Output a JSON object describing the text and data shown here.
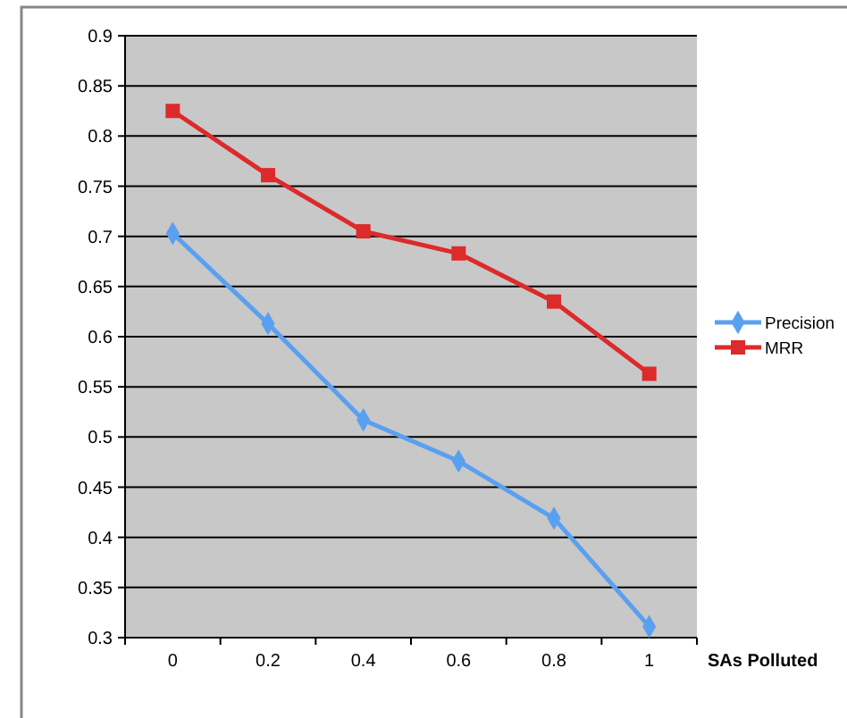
{
  "chart_data": {
    "type": "line",
    "xlabel": "SAs Polluted",
    "categories": [
      "0",
      "0.2",
      "0.4",
      "0.6",
      "0.8",
      "1"
    ],
    "series": [
      {
        "name": "Precision",
        "color": "#5aa0f0",
        "marker": "diamond",
        "values": [
          0.703,
          0.613,
          0.517,
          0.476,
          0.419,
          0.311
        ]
      },
      {
        "name": "MRR",
        "color": "#dd2a2a",
        "marker": "square",
        "values": [
          0.825,
          0.761,
          0.705,
          0.683,
          0.635,
          0.563
        ]
      }
    ],
    "ylim": [
      0.3,
      0.9
    ],
    "yticks": [
      0.3,
      0.35,
      0.4,
      0.45,
      0.5,
      0.55,
      0.6,
      0.65,
      0.7,
      0.75,
      0.8,
      0.85,
      0.9
    ],
    "grid": "y",
    "legend": "right"
  }
}
